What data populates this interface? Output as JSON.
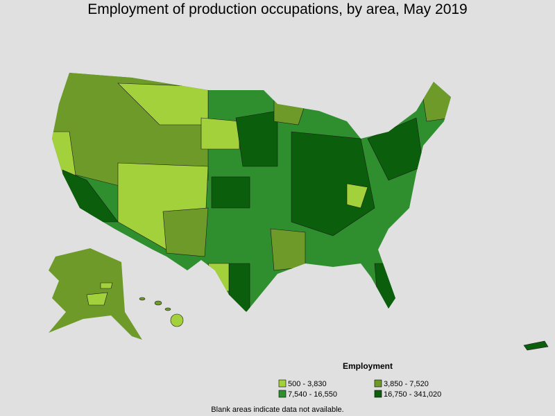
{
  "title": "Employment of production occupations, by area, May 2019",
  "legend": {
    "title": "Employment",
    "items": [
      {
        "label": "500 - 3,830",
        "color": "#a3d13c"
      },
      {
        "label": "3,850 - 7,520",
        "color": "#6e9a2a"
      },
      {
        "label": "7,540 - 16,550",
        "color": "#2f8f2f"
      },
      {
        "label": "16,750 - 341,020",
        "color": "#0b5e0b"
      }
    ]
  },
  "note": "Blank areas indicate data not available."
}
